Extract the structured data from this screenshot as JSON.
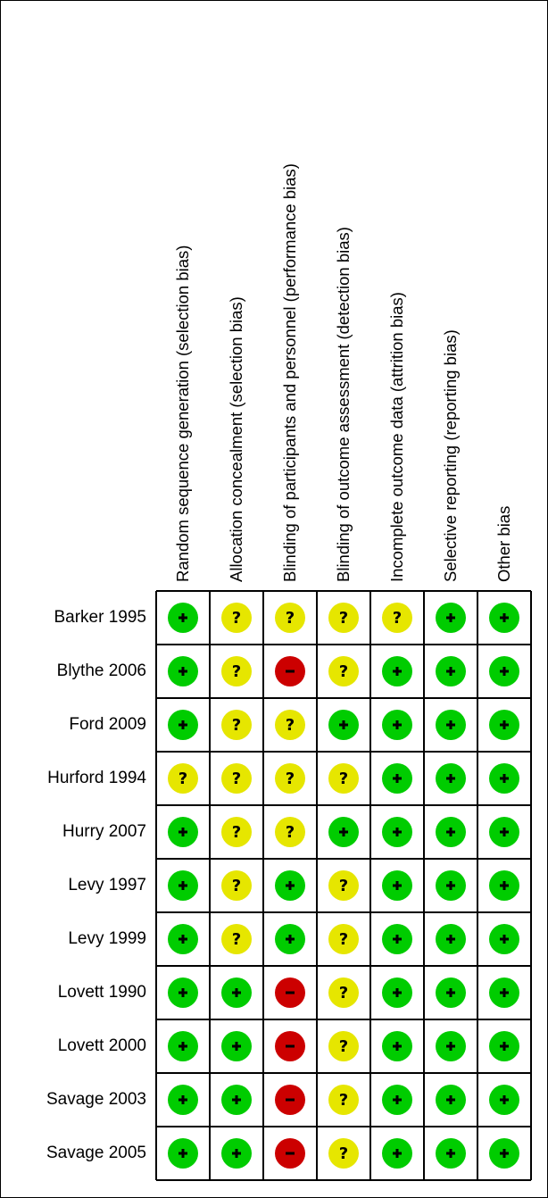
{
  "domains": [
    "Random sequence generation (selection bias)",
    "Allocation concealment (selection bias)",
    "Blinding of participants and personnel (performance bias)",
    "Blinding of outcome assessment (detection bias)",
    "Incomplete outcome data (attrition bias)",
    "Selective reporting (reporting bias)",
    "Other bias"
  ],
  "studies": [
    {
      "name": "Barker 1995",
      "judgements": [
        "+",
        "?",
        "?",
        "?",
        "?",
        "+",
        "+"
      ]
    },
    {
      "name": "Blythe 2006",
      "judgements": [
        "+",
        "?",
        "-",
        "?",
        "+",
        "+",
        "+"
      ]
    },
    {
      "name": "Ford 2009",
      "judgements": [
        "+",
        "?",
        "?",
        "+",
        "+",
        "+",
        "+"
      ]
    },
    {
      "name": "Hurford 1994",
      "judgements": [
        "?",
        "?",
        "?",
        "?",
        "+",
        "+",
        "+"
      ]
    },
    {
      "name": "Hurry 2007",
      "judgements": [
        "+",
        "?",
        "?",
        "+",
        "+",
        "+",
        "+"
      ]
    },
    {
      "name": "Levy 1997",
      "judgements": [
        "+",
        "?",
        "+",
        "?",
        "+",
        "+",
        "+"
      ]
    },
    {
      "name": "Levy 1999",
      "judgements": [
        "+",
        "?",
        "+",
        "?",
        "+",
        "+",
        "+"
      ]
    },
    {
      "name": "Lovett 1990",
      "judgements": [
        "+",
        "+",
        "-",
        "?",
        "+",
        "+",
        "+"
      ]
    },
    {
      "name": "Lovett 2000",
      "judgements": [
        "+",
        "+",
        "-",
        "?",
        "+",
        "+",
        "+"
      ]
    },
    {
      "name": "Savage 2003",
      "judgements": [
        "+",
        "+",
        "-",
        "?",
        "+",
        "+",
        "+"
      ]
    },
    {
      "name": "Savage 2005",
      "judgements": [
        "+",
        "+",
        "-",
        "?",
        "+",
        "+",
        "+"
      ]
    }
  ],
  "colors": {
    "low": "#00cc00",
    "unclear": "#e6e600",
    "high": "#cc0000",
    "grid": "#000000"
  }
}
